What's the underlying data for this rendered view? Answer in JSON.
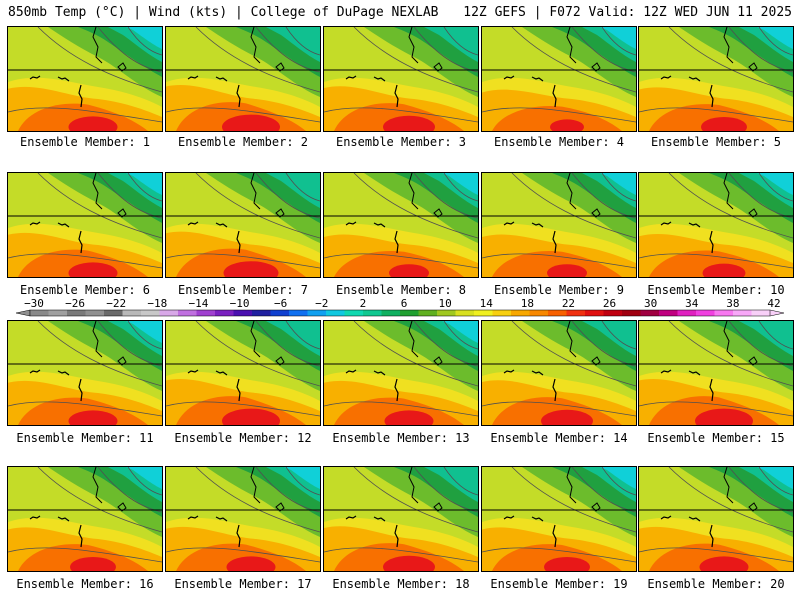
{
  "header": {
    "left": "850mb Temp (°C) | Wind (kts) | College of DuPage NEXLAB",
    "right": "12Z GEFS | F072 Valid: 12Z WED JUN 11 2025"
  },
  "panel_caption_prefix": "Ensemble Member:",
  "members": [
    {
      "number": "1",
      "warmth": 0.55
    },
    {
      "number": "2",
      "warmth": 0.7
    },
    {
      "number": "3",
      "warmth": 0.6
    },
    {
      "number": "4",
      "warmth": 0.3
    },
    {
      "number": "5",
      "warmth": 0.5
    },
    {
      "number": "6",
      "warmth": 0.55
    },
    {
      "number": "7",
      "warmth": 0.65
    },
    {
      "number": "8",
      "warmth": 0.4
    },
    {
      "number": "9",
      "warmth": 0.4
    },
    {
      "number": "10",
      "warmth": 0.45
    },
    {
      "number": "11",
      "warmth": 0.55
    },
    {
      "number": "12",
      "warmth": 0.7
    },
    {
      "number": "13",
      "warmth": 0.55
    },
    {
      "number": "14",
      "warmth": 0.6
    },
    {
      "number": "15",
      "warmth": 0.7
    },
    {
      "number": "16",
      "warmth": 0.5
    },
    {
      "number": "17",
      "warmth": 0.55
    },
    {
      "number": "18",
      "warmth": 0.6
    },
    {
      "number": "19",
      "warmth": 0.5
    },
    {
      "number": "20",
      "warmth": 0.55
    }
  ],
  "colorbar": {
    "labels": [
      "-30",
      "-26",
      "-22",
      "-18",
      "-14",
      "-10",
      "-6",
      "-2",
      "2",
      "6",
      "10",
      "14",
      "18",
      "22",
      "26",
      "30",
      "34",
      "38",
      "42"
    ],
    "colors": [
      "#8a8a8a",
      "#a0a0a0",
      "#7a7a7a",
      "#909090",
      "#6a6a6a",
      "#b8b8b8",
      "#c8c8c8",
      "#d8a8e8",
      "#c070e0",
      "#a040d0",
      "#7a20c0",
      "#4a10b0",
      "#2020a0",
      "#1040d0",
      "#1070f0",
      "#10a0f0",
      "#10c8e0",
      "#10d8b0",
      "#10c890",
      "#10b060",
      "#20a030",
      "#60b020",
      "#a0c820",
      "#d8e020",
      "#f0f020",
      "#f8d010",
      "#f8a800",
      "#f88800",
      "#f86000",
      "#f03010",
      "#e01010",
      "#c00010",
      "#a00010",
      "#a00040",
      "#c00080",
      "#e020c0",
      "#f040e0",
      "#f878f0",
      "#f8a8f8",
      "#f8d0f8"
    ]
  }
}
